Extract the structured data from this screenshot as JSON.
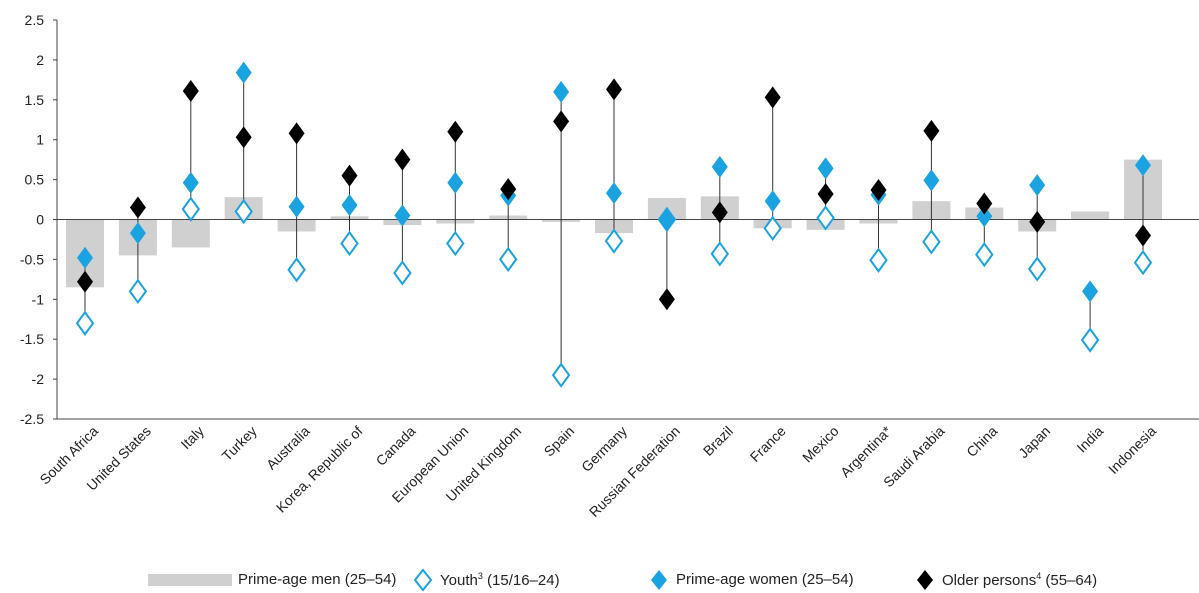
{
  "chart_data": {
    "type": "scatter",
    "categories": [
      "South Africa",
      "United States",
      "Italy",
      "Turkey",
      "Australia",
      "Korea, Republic of",
      "Canada",
      "European Union",
      "United Kingdom",
      "Spain",
      "Germany",
      "Russian Federation",
      "Brazil",
      "France",
      "Mexico",
      "Argentina*",
      "Saudi Arabia",
      "China",
      "Japan",
      "India",
      "Indonesia"
    ],
    "ylim": [
      -2.5,
      2.5
    ],
    "yticks": [
      "2.5",
      "2",
      "1.5",
      "1",
      "0.5",
      "0",
      "-0.5",
      "-1",
      "-1.5",
      "-2",
      "-2.5"
    ],
    "series": [
      {
        "name": "Prime-age men (25–54)",
        "marker": "bar",
        "color": "#d0d0d0",
        "values": [
          -0.85,
          -0.45,
          -0.35,
          0.28,
          -0.15,
          0.04,
          -0.07,
          -0.05,
          0.05,
          -0.03,
          -0.17,
          0.27,
          0.29,
          -0.11,
          -0.13,
          -0.05,
          0.23,
          0.15,
          -0.15,
          0.1,
          0.75
        ]
      },
      {
        "name": "Youth³ (15/16–24)",
        "marker": "hollow-diamond",
        "color": "#1aa3e0",
        "values": [
          -1.3,
          -0.9,
          0.13,
          0.1,
          -0.63,
          -0.3,
          -0.67,
          -0.3,
          -0.5,
          -1.95,
          -0.27,
          0.0,
          -0.43,
          -0.11,
          0.02,
          -0.51,
          -0.28,
          -0.44,
          -0.62,
          -1.51,
          -0.54
        ]
      },
      {
        "name": "Prime-age women (25–54)",
        "marker": "diamond",
        "color": "#1aa3e0",
        "values": [
          -0.48,
          -0.17,
          0.46,
          1.84,
          0.16,
          0.18,
          0.05,
          0.46,
          0.3,
          1.6,
          0.33,
          0.01,
          0.66,
          0.23,
          0.64,
          0.31,
          0.49,
          0.04,
          0.43,
          -0.9,
          0.68
        ]
      },
      {
        "name": "Older persons⁴ (55–64)",
        "marker": "diamond",
        "color": "#000000",
        "values": [
          -0.78,
          0.15,
          1.61,
          1.03,
          1.08,
          0.55,
          0.75,
          1.1,
          0.38,
          1.23,
          1.63,
          -1.0,
          0.09,
          1.53,
          0.32,
          0.37,
          1.11,
          0.2,
          -0.03,
          null,
          -0.2
        ]
      }
    ],
    "legend_position": "bottom",
    "grid": false
  },
  "legend": {
    "men": "Prime-age men (25–54)",
    "youth_main": "Youth",
    "youth_sup": "3",
    "youth_rest": " (15/16–24)",
    "women": "Prime-age women (25–54)",
    "older_main": "Older persons",
    "older_sup": "4",
    "older_rest": " (55–64)"
  }
}
